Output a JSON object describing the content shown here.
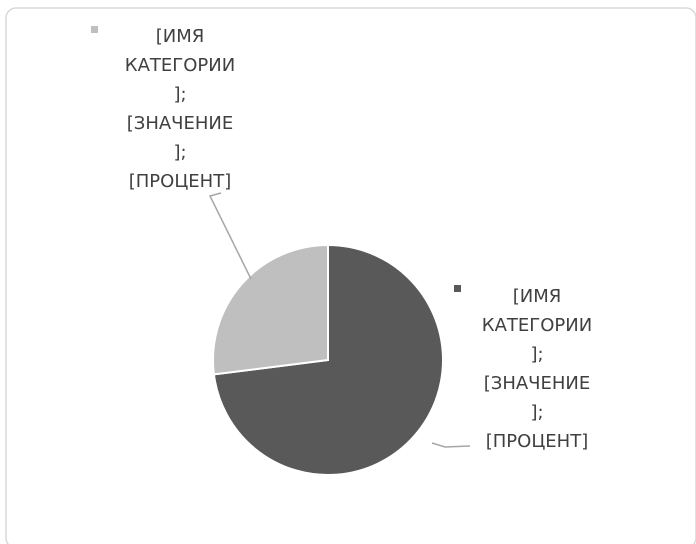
{
  "chart_data": {
    "type": "pie",
    "values": [
      73,
      27
    ],
    "colors": [
      "#595959",
      "#bfbfbf"
    ],
    "data_labels": [
      [
        "[ИМЯ",
        "КАТЕГОРИИ",
        "];",
        "[ЗНАЧЕНИЕ",
        "];",
        "[ПРОЦЕНТ]"
      ],
      [
        "[ИМЯ",
        "КАТЕГОРИИ",
        "];",
        "[ЗНАЧЕНИЕ",
        "];",
        "[ПРОЦЕНТ]"
      ]
    ]
  }
}
